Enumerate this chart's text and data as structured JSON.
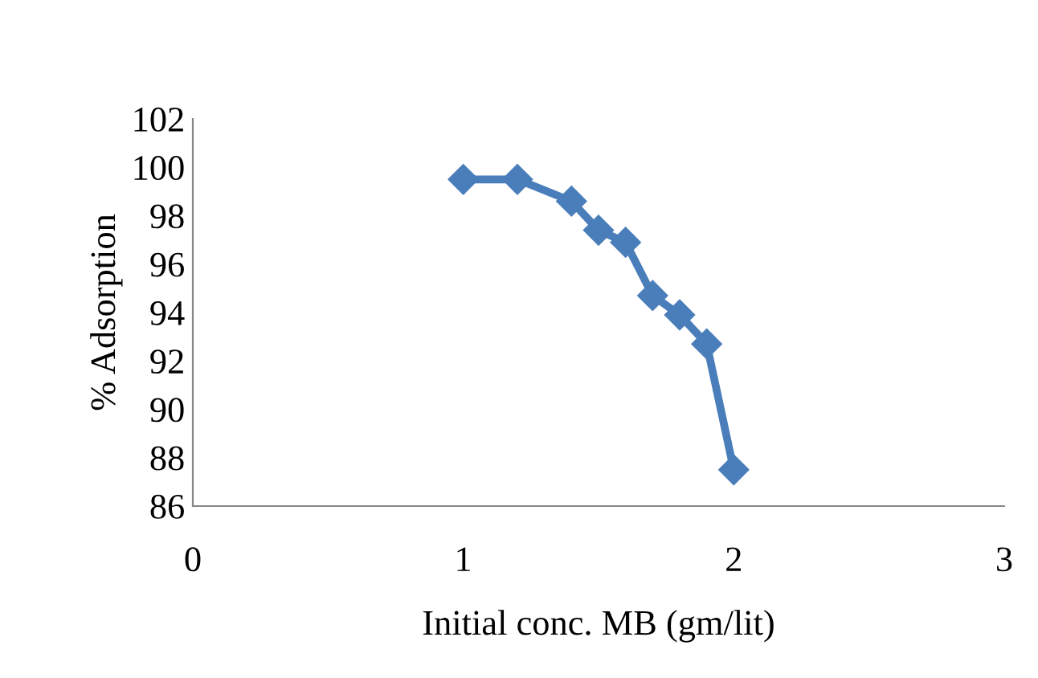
{
  "chart_data": {
    "type": "line",
    "xlabel": "Initial conc. MB (gm/lit)",
    "ylabel": "% Adsorption",
    "x": [
      1.0,
      1.2,
      1.4,
      1.5,
      1.6,
      1.7,
      1.8,
      1.9,
      2.0
    ],
    "series": [
      {
        "color": "#4a7ebb",
        "values": [
          99.5,
          99.5,
          98.6,
          97.4,
          96.9,
          94.7,
          93.9,
          92.7,
          87.5
        ]
      }
    ],
    "xlim": [
      0,
      3
    ],
    "xticks": [
      0,
      1,
      2,
      3
    ],
    "ylim": [
      86,
      102
    ],
    "yticks": [
      86,
      88,
      90,
      92,
      94,
      96,
      98,
      100,
      102
    ],
    "marker": "diamond",
    "line_style": "solid",
    "grid": false,
    "legend": false
  }
}
